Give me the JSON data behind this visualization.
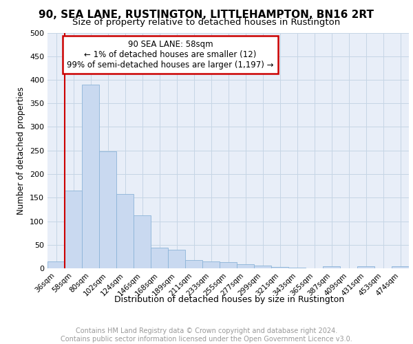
{
  "title1": "90, SEA LANE, RUSTINGTON, LITTLEHAMPTON, BN16 2RT",
  "title2": "Size of property relative to detached houses in Rustington",
  "xlabel": "Distribution of detached houses by size in Rustington",
  "ylabel": "Number of detached properties",
  "footer1": "Contains HM Land Registry data © Crown copyright and database right 2024.",
  "footer2": "Contains public sector information licensed under the Open Government Licence v3.0.",
  "bar_labels": [
    "36sqm",
    "58sqm",
    "80sqm",
    "102sqm",
    "124sqm",
    "146sqm",
    "168sqm",
    "189sqm",
    "211sqm",
    "233sqm",
    "255sqm",
    "277sqm",
    "299sqm",
    "321sqm",
    "343sqm",
    "365sqm",
    "387sqm",
    "409sqm",
    "431sqm",
    "453sqm",
    "474sqm"
  ],
  "bar_values": [
    14,
    165,
    390,
    248,
    157,
    113,
    44,
    39,
    17,
    15,
    13,
    9,
    6,
    3,
    2,
    0,
    5,
    0,
    4,
    0,
    4
  ],
  "bar_color": "#c9d9f0",
  "bar_edge_color": "#8cb4d8",
  "vline_x_index": 1,
  "annotation_text": "90 SEA LANE: 58sqm\n← 1% of detached houses are smaller (12)\n99% of semi-detached houses are larger (1,197) →",
  "annotation_box_color": "white",
  "annotation_box_edge_color": "#cc0000",
  "vline_color": "#cc0000",
  "ylim": [
    0,
    500
  ],
  "yticks": [
    0,
    50,
    100,
    150,
    200,
    250,
    300,
    350,
    400,
    450,
    500
  ],
  "grid_color": "#c5d5e5",
  "bg_color": "#e8eef8",
  "title1_fontsize": 11,
  "title2_fontsize": 9.5,
  "ylabel_fontsize": 8.5,
  "xlabel_fontsize": 9,
  "tick_fontsize": 7.5,
  "ytick_fontsize": 8,
  "footer_fontsize": 7,
  "annotation_fontsize": 8.5
}
